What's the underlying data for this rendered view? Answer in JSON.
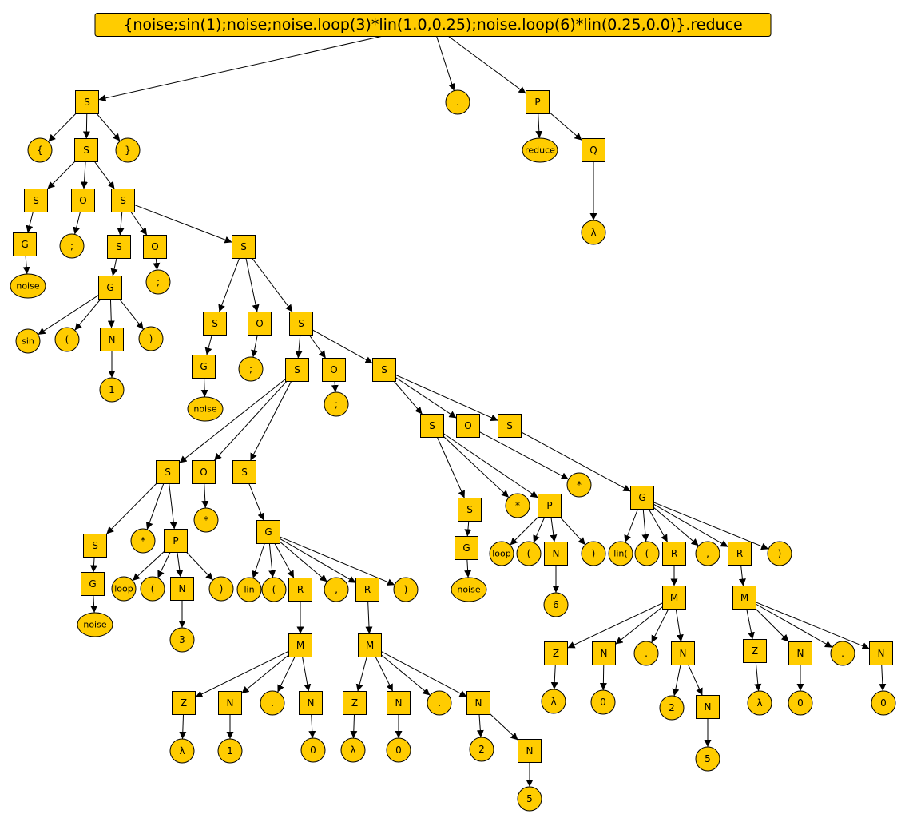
{
  "colors": {
    "node_fill": "#ffcc00",
    "node_stroke": "#000000",
    "edge": "#000000",
    "background": "#ffffff"
  },
  "root": {
    "id": "root",
    "label": "{noise;sin(1);noise;noise.loop(3)*lin(1.0,0.25);noise.loop(6)*lin(0.25,0.0)}.reduce",
    "shape": "rect"
  },
  "nodes": [
    {
      "id": "s1",
      "label": "S",
      "shape": "rect"
    },
    {
      "id": "dot_top",
      "label": ".",
      "shape": "circle"
    },
    {
      "id": "p_top",
      "label": "P",
      "shape": "rect"
    },
    {
      "id": "lbrace",
      "label": "{",
      "shape": "circle"
    },
    {
      "id": "s2",
      "label": "S",
      "shape": "rect"
    },
    {
      "id": "rbrace",
      "label": "}",
      "shape": "circle"
    },
    {
      "id": "reduce",
      "label": "reduce",
      "shape": "ellipse"
    },
    {
      "id": "q_top",
      "label": "Q",
      "shape": "rect"
    },
    {
      "id": "lam_q",
      "label": "λ",
      "shape": "circle"
    },
    {
      "id": "s3",
      "label": "S",
      "shape": "rect"
    },
    {
      "id": "o1",
      "label": "O",
      "shape": "rect"
    },
    {
      "id": "s4",
      "label": "S",
      "shape": "rect"
    },
    {
      "id": "g1",
      "label": "G",
      "shape": "rect"
    },
    {
      "id": "semi1",
      "label": ";",
      "shape": "circle"
    },
    {
      "id": "noise1",
      "label": "noise",
      "shape": "ellipse"
    },
    {
      "id": "s5",
      "label": "S",
      "shape": "rect"
    },
    {
      "id": "o2",
      "label": "O",
      "shape": "rect"
    },
    {
      "id": "s6",
      "label": "S",
      "shape": "rect"
    },
    {
      "id": "g2",
      "label": "G",
      "shape": "rect"
    },
    {
      "id": "semi2",
      "label": ";",
      "shape": "circle"
    },
    {
      "id": "sin",
      "label": "sin",
      "shape": "circle"
    },
    {
      "id": "lp1",
      "label": "(",
      "shape": "circle"
    },
    {
      "id": "n1",
      "label": "N",
      "shape": "rect"
    },
    {
      "id": "rp1",
      "label": ")",
      "shape": "circle"
    },
    {
      "id": "one1",
      "label": "1",
      "shape": "circle"
    },
    {
      "id": "s7",
      "label": "S",
      "shape": "rect"
    },
    {
      "id": "o3",
      "label": "O",
      "shape": "rect"
    },
    {
      "id": "s8",
      "label": "S",
      "shape": "rect"
    },
    {
      "id": "g3",
      "label": "G",
      "shape": "rect"
    },
    {
      "id": "semi3",
      "label": ";",
      "shape": "circle"
    },
    {
      "id": "noise2",
      "label": "noise",
      "shape": "ellipse"
    },
    {
      "id": "s9",
      "label": "S",
      "shape": "rect"
    },
    {
      "id": "o4",
      "label": "O",
      "shape": "rect"
    },
    {
      "id": "s10",
      "label": "S",
      "shape": "rect"
    },
    {
      "id": "semi4",
      "label": ";",
      "shape": "circle"
    },
    {
      "id": "s11",
      "label": "S",
      "shape": "rect"
    },
    {
      "id": "o5",
      "label": "O",
      "shape": "rect"
    },
    {
      "id": "s12",
      "label": "S",
      "shape": "rect"
    },
    {
      "id": "star1",
      "label": "*",
      "shape": "circle"
    },
    {
      "id": "s13",
      "label": "S",
      "shape": "rect"
    },
    {
      "id": "star2",
      "label": "*",
      "shape": "circle"
    },
    {
      "id": "p1",
      "label": "P",
      "shape": "rect"
    },
    {
      "id": "g4",
      "label": "G",
      "shape": "rect"
    },
    {
      "id": "noise3",
      "label": "noise",
      "shape": "ellipse"
    },
    {
      "id": "loop1",
      "label": "loop",
      "shape": "circle"
    },
    {
      "id": "lp2",
      "label": "(",
      "shape": "circle"
    },
    {
      "id": "n2",
      "label": "N",
      "shape": "rect"
    },
    {
      "id": "rp2",
      "label": ")",
      "shape": "circle"
    },
    {
      "id": "three",
      "label": "3",
      "shape": "circle"
    },
    {
      "id": "g5",
      "label": "G",
      "shape": "rect"
    },
    {
      "id": "lin1",
      "label": "lin",
      "shape": "circle"
    },
    {
      "id": "lp3",
      "label": "(",
      "shape": "circle"
    },
    {
      "id": "r1",
      "label": "R",
      "shape": "rect"
    },
    {
      "id": "comma1",
      "label": ",",
      "shape": "circle"
    },
    {
      "id": "r2",
      "label": "R",
      "shape": "rect"
    },
    {
      "id": "rp3",
      "label": ")",
      "shape": "circle"
    },
    {
      "id": "m1",
      "label": "M",
      "shape": "rect"
    },
    {
      "id": "m2",
      "label": "M",
      "shape": "rect"
    },
    {
      "id": "z1",
      "label": "Z",
      "shape": "rect"
    },
    {
      "id": "n3",
      "label": "N",
      "shape": "rect"
    },
    {
      "id": "dot1",
      "label": ".",
      "shape": "circle"
    },
    {
      "id": "n4",
      "label": "N",
      "shape": "rect"
    },
    {
      "id": "lam1",
      "label": "λ",
      "shape": "circle"
    },
    {
      "id": "one2",
      "label": "1",
      "shape": "circle"
    },
    {
      "id": "zero1",
      "label": "0",
      "shape": "circle"
    },
    {
      "id": "z2",
      "label": "Z",
      "shape": "rect"
    },
    {
      "id": "n5",
      "label": "N",
      "shape": "rect"
    },
    {
      "id": "dot2",
      "label": ".",
      "shape": "circle"
    },
    {
      "id": "n6",
      "label": "N",
      "shape": "rect"
    },
    {
      "id": "lam2",
      "label": "λ",
      "shape": "circle"
    },
    {
      "id": "zero2",
      "label": "0",
      "shape": "circle"
    },
    {
      "id": "two1",
      "label": "2",
      "shape": "circle"
    },
    {
      "id": "n7",
      "label": "N",
      "shape": "rect"
    },
    {
      "id": "five1",
      "label": "5",
      "shape": "circle"
    },
    {
      "id": "s14",
      "label": "S",
      "shape": "rect"
    },
    {
      "id": "o6",
      "label": "O",
      "shape": "rect"
    },
    {
      "id": "s15",
      "label": "S",
      "shape": "rect"
    },
    {
      "id": "s16",
      "label": "S",
      "shape": "rect"
    },
    {
      "id": "star3",
      "label": "*",
      "shape": "circle"
    },
    {
      "id": "p2",
      "label": "P",
      "shape": "rect"
    },
    {
      "id": "star4",
      "label": "*",
      "shape": "circle"
    },
    {
      "id": "g6",
      "label": "G",
      "shape": "rect"
    },
    {
      "id": "g7",
      "label": "G",
      "shape": "rect"
    },
    {
      "id": "noise4",
      "label": "noise",
      "shape": "ellipse"
    },
    {
      "id": "loop2",
      "label": "loop",
      "shape": "circle"
    },
    {
      "id": "lp4",
      "label": "(",
      "shape": "circle"
    },
    {
      "id": "n8",
      "label": "N",
      "shape": "rect"
    },
    {
      "id": "rp4",
      "label": ")",
      "shape": "circle"
    },
    {
      "id": "six",
      "label": "6",
      "shape": "circle"
    },
    {
      "id": "lin2",
      "label": "lin(",
      "shape": "circle"
    },
    {
      "id": "lp5",
      "label": "(",
      "shape": "circle"
    },
    {
      "id": "r3",
      "label": "R",
      "shape": "rect"
    },
    {
      "id": "comma2",
      "label": ",",
      "shape": "circle"
    },
    {
      "id": "r4",
      "label": "R",
      "shape": "rect"
    },
    {
      "id": "rp5",
      "label": ")",
      "shape": "circle"
    },
    {
      "id": "m3",
      "label": "M",
      "shape": "rect"
    },
    {
      "id": "m4",
      "label": "M",
      "shape": "rect"
    },
    {
      "id": "z3",
      "label": "Z",
      "shape": "rect"
    },
    {
      "id": "n9",
      "label": "N",
      "shape": "rect"
    },
    {
      "id": "dot3",
      "label": ".",
      "shape": "circle"
    },
    {
      "id": "n10",
      "label": "N",
      "shape": "rect"
    },
    {
      "id": "lam3",
      "label": "λ",
      "shape": "circle"
    },
    {
      "id": "zero3",
      "label": "0",
      "shape": "circle"
    },
    {
      "id": "two2",
      "label": "2",
      "shape": "circle"
    },
    {
      "id": "n11",
      "label": "N",
      "shape": "rect"
    },
    {
      "id": "five2",
      "label": "5",
      "shape": "circle"
    },
    {
      "id": "z4",
      "label": "Z",
      "shape": "rect"
    },
    {
      "id": "n12",
      "label": "N",
      "shape": "rect"
    },
    {
      "id": "dot4",
      "label": ".",
      "shape": "circle"
    },
    {
      "id": "n13",
      "label": "N",
      "shape": "rect"
    },
    {
      "id": "lam4",
      "label": "λ",
      "shape": "circle"
    },
    {
      "id": "zero4",
      "label": "0",
      "shape": "circle"
    },
    {
      "id": "zero5",
      "label": "0",
      "shape": "circle"
    }
  ],
  "edges": [
    [
      "root",
      "s1"
    ],
    [
      "root",
      "dot_top"
    ],
    [
      "root",
      "p_top"
    ],
    [
      "s1",
      "lbrace"
    ],
    [
      "s1",
      "s2"
    ],
    [
      "s1",
      "rbrace"
    ],
    [
      "p_top",
      "reduce"
    ],
    [
      "p_top",
      "q_top"
    ],
    [
      "q_top",
      "lam_q"
    ],
    [
      "s2",
      "s3"
    ],
    [
      "s2",
      "o1"
    ],
    [
      "s2",
      "s4"
    ],
    [
      "s3",
      "g1"
    ],
    [
      "g1",
      "noise1"
    ],
    [
      "o1",
      "semi1"
    ],
    [
      "s4",
      "s5"
    ],
    [
      "s4",
      "o2"
    ],
    [
      "s4",
      "s6"
    ],
    [
      "s5",
      "g2"
    ],
    [
      "o2",
      "semi2"
    ],
    [
      "g2",
      "sin"
    ],
    [
      "g2",
      "lp1"
    ],
    [
      "g2",
      "n1"
    ],
    [
      "g2",
      "rp1"
    ],
    [
      "n1",
      "one1"
    ],
    [
      "s6",
      "s7"
    ],
    [
      "s6",
      "o3"
    ],
    [
      "s6",
      "s8"
    ],
    [
      "s7",
      "g3"
    ],
    [
      "g3",
      "noise2"
    ],
    [
      "o3",
      "semi3"
    ],
    [
      "s8",
      "s9"
    ],
    [
      "s8",
      "o4"
    ],
    [
      "s8",
      "s10"
    ],
    [
      "o4",
      "semi4"
    ],
    [
      "s9",
      "s11"
    ],
    [
      "s9",
      "o5"
    ],
    [
      "s9",
      "s12"
    ],
    [
      "o5",
      "star2"
    ],
    [
      "s11",
      "s13"
    ],
    [
      "s11",
      "star1"
    ],
    [
      "s11",
      "p1"
    ],
    [
      "s13",
      "g4"
    ],
    [
      "g4",
      "noise3"
    ],
    [
      "p1",
      "loop1"
    ],
    [
      "p1",
      "lp2"
    ],
    [
      "p1",
      "n2"
    ],
    [
      "p1",
      "rp2"
    ],
    [
      "n2",
      "three"
    ],
    [
      "s12",
      "g5"
    ],
    [
      "g5",
      "lin1"
    ],
    [
      "g5",
      "lp3"
    ],
    [
      "g5",
      "r1"
    ],
    [
      "g5",
      "comma1"
    ],
    [
      "g5",
      "r2"
    ],
    [
      "g5",
      "rp3"
    ],
    [
      "r1",
      "m1"
    ],
    [
      "r2",
      "m2"
    ],
    [
      "m1",
      "z1"
    ],
    [
      "m1",
      "n3"
    ],
    [
      "m1",
      "dot1"
    ],
    [
      "m1",
      "n4"
    ],
    [
      "z1",
      "lam1"
    ],
    [
      "n3",
      "one2"
    ],
    [
      "n4",
      "zero1"
    ],
    [
      "m2",
      "z2"
    ],
    [
      "m2",
      "n5"
    ],
    [
      "m2",
      "dot2"
    ],
    [
      "m2",
      "n6"
    ],
    [
      "z2",
      "lam2"
    ],
    [
      "n5",
      "zero2"
    ],
    [
      "n6",
      "two1"
    ],
    [
      "n6",
      "n7"
    ],
    [
      "n7",
      "five1"
    ],
    [
      "s10",
      "s14"
    ],
    [
      "s10",
      "o6"
    ],
    [
      "s10",
      "s15"
    ],
    [
      "s14",
      "s16"
    ],
    [
      "s14",
      "star3"
    ],
    [
      "s14",
      "p2"
    ],
    [
      "o6",
      "star4"
    ],
    [
      "s15",
      "g6"
    ],
    [
      "s16",
      "g7"
    ],
    [
      "g7",
      "noise4"
    ],
    [
      "p2",
      "loop2"
    ],
    [
      "p2",
      "lp4"
    ],
    [
      "p2",
      "n8"
    ],
    [
      "p2",
      "rp4"
    ],
    [
      "n8",
      "six"
    ],
    [
      "g6",
      "lin2"
    ],
    [
      "g6",
      "lp5"
    ],
    [
      "g6",
      "r3"
    ],
    [
      "g6",
      "comma2"
    ],
    [
      "g6",
      "r4"
    ],
    [
      "g6",
      "rp5"
    ],
    [
      "r3",
      "m3"
    ],
    [
      "r4",
      "m4"
    ],
    [
      "m3",
      "z3"
    ],
    [
      "m3",
      "n9"
    ],
    [
      "m3",
      "dot3"
    ],
    [
      "m3",
      "n10"
    ],
    [
      "z3",
      "lam3"
    ],
    [
      "n9",
      "zero3"
    ],
    [
      "n10",
      "two2"
    ],
    [
      "n10",
      "n11"
    ],
    [
      "n11",
      "five2"
    ],
    [
      "m4",
      "z4"
    ],
    [
      "m4",
      "n12"
    ],
    [
      "m4",
      "dot4"
    ],
    [
      "m4",
      "n13"
    ],
    [
      "z4",
      "lam4"
    ],
    [
      "n12",
      "zero4"
    ],
    [
      "n13",
      "zero5"
    ]
  ]
}
